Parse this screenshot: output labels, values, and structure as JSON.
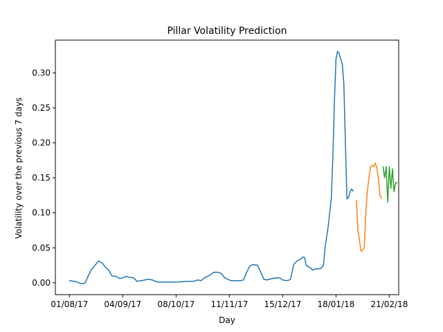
{
  "chart_data": {
    "type": "line",
    "title": "Pillar Volatility Prediction",
    "xlabel": "Day",
    "ylabel": "Volatility over the previous 7 days",
    "ylim": [
      -0.017,
      0.347
    ],
    "xlim": [
      "2017-07-23",
      "2018-02-27"
    ],
    "grid": false,
    "x_ticks": [
      "01/08/17",
      "04/09/17",
      "08/10/17",
      "11/11/17",
      "15/12/17",
      "18/01/18",
      "21/02/18"
    ],
    "y_ticks": [
      "0.00",
      "0.05",
      "0.10",
      "0.15",
      "0.20",
      "0.25",
      "0.30"
    ],
    "series": [
      {
        "color": "#1f77b4",
        "points": [
          [
            "2017-08-01",
            0.003
          ],
          [
            "2017-08-04",
            0.002
          ],
          [
            "2017-08-06",
            0.001
          ],
          [
            "2017-08-08",
            -0.001
          ],
          [
            "2017-08-10",
            -0.001
          ],
          [
            "2017-08-11",
            0.0
          ],
          [
            "2017-08-13",
            0.01
          ],
          [
            "2017-08-15",
            0.019
          ],
          [
            "2017-08-17",
            0.024
          ],
          [
            "2017-08-19",
            0.03
          ],
          [
            "2017-08-20",
            0.031
          ],
          [
            "2017-08-22",
            0.028
          ],
          [
            "2017-08-24",
            0.022
          ],
          [
            "2017-08-26",
            0.018
          ],
          [
            "2017-08-28",
            0.01
          ],
          [
            "2017-08-31",
            0.009
          ],
          [
            "2017-09-02",
            0.006
          ],
          [
            "2017-09-04",
            0.007
          ],
          [
            "2017-09-06",
            0.009
          ],
          [
            "2017-09-08",
            0.008
          ],
          [
            "2017-09-11",
            0.007
          ],
          [
            "2017-09-13",
            0.002
          ],
          [
            "2017-09-16",
            0.003
          ],
          [
            "2017-09-20",
            0.005
          ],
          [
            "2017-09-23",
            0.004
          ],
          [
            "2017-09-26",
            0.001
          ],
          [
            "2017-09-29",
            0.001
          ],
          [
            "2017-10-04",
            0.001
          ],
          [
            "2017-10-10",
            0.001
          ],
          [
            "2017-10-15",
            0.002
          ],
          [
            "2017-10-19",
            0.002
          ],
          [
            "2017-10-22",
            0.004
          ],
          [
            "2017-10-24",
            0.003
          ],
          [
            "2017-10-26",
            0.007
          ],
          [
            "2017-10-29",
            0.01
          ],
          [
            "2017-11-01",
            0.015
          ],
          [
            "2017-11-04",
            0.015
          ],
          [
            "2017-11-06",
            0.013
          ],
          [
            "2017-11-08",
            0.007
          ],
          [
            "2017-11-10",
            0.005
          ],
          [
            "2017-11-12",
            0.003
          ],
          [
            "2017-11-15",
            0.003
          ],
          [
            "2017-11-18",
            0.003
          ],
          [
            "2017-11-20",
            0.004
          ],
          [
            "2017-11-22",
            0.015
          ],
          [
            "2017-11-24",
            0.024
          ],
          [
            "2017-11-26",
            0.026
          ],
          [
            "2017-11-29",
            0.025
          ],
          [
            "2017-12-01",
            0.015
          ],
          [
            "2017-12-03",
            0.005
          ],
          [
            "2017-12-05",
            0.004
          ],
          [
            "2017-12-08",
            0.006
          ],
          [
            "2017-12-11",
            0.007
          ],
          [
            "2017-12-13",
            0.007
          ],
          [
            "2017-12-15",
            0.004
          ],
          [
            "2017-12-18",
            0.003
          ],
          [
            "2017-12-20",
            0.005
          ],
          [
            "2017-12-22",
            0.026
          ],
          [
            "2017-12-24",
            0.031
          ],
          [
            "2017-12-26",
            0.033
          ],
          [
            "2017-12-28",
            0.037
          ],
          [
            "2017-12-29",
            0.036
          ],
          [
            "2017-12-30",
            0.025
          ],
          [
            "2018-01-01",
            0.022
          ],
          [
            "2018-01-02",
            0.021
          ],
          [
            "2018-01-03",
            0.018
          ],
          [
            "2018-01-05",
            0.02
          ],
          [
            "2018-01-06",
            0.02
          ],
          [
            "2018-01-08",
            0.02
          ],
          [
            "2018-01-10",
            0.025
          ],
          [
            "2018-01-11",
            0.05
          ],
          [
            "2018-01-13",
            0.08
          ],
          [
            "2018-01-14",
            0.1
          ],
          [
            "2018-01-15",
            0.12
          ],
          [
            "2018-01-16",
            0.18
          ],
          [
            "2018-01-17",
            0.26
          ],
          [
            "2018-01-18",
            0.32
          ],
          [
            "2018-01-19",
            0.331
          ],
          [
            "2018-01-20",
            0.328
          ],
          [
            "2018-01-21",
            0.32
          ],
          [
            "2018-01-22",
            0.313
          ],
          [
            "2018-01-23",
            0.285
          ],
          [
            "2018-01-24",
            0.2
          ],
          [
            "2018-01-25",
            0.12
          ],
          [
            "2018-01-26",
            0.122
          ],
          [
            "2018-01-27",
            0.13
          ],
          [
            "2018-01-28",
            0.134
          ],
          [
            "2018-01-29",
            0.131
          ]
        ]
      },
      {
        "color": "#ff7f0e",
        "points": [
          [
            "2018-01-31",
            0.118
          ],
          [
            "2018-02-01",
            0.075
          ],
          [
            "2018-02-02",
            0.06
          ],
          [
            "2018-02-03",
            0.045
          ],
          [
            "2018-02-04",
            0.047
          ],
          [
            "2018-02-05",
            0.05
          ],
          [
            "2018-02-06",
            0.1
          ],
          [
            "2018-02-07",
            0.13
          ],
          [
            "2018-02-08",
            0.15
          ],
          [
            "2018-02-09",
            0.165
          ],
          [
            "2018-02-10",
            0.168
          ],
          [
            "2018-02-11",
            0.166
          ],
          [
            "2018-02-12",
            0.171
          ],
          [
            "2018-02-13",
            0.165
          ],
          [
            "2018-02-14",
            0.15
          ],
          [
            "2018-02-15",
            0.125
          ],
          [
            "2018-02-16",
            0.121
          ]
        ]
      },
      {
        "color": "#2ca02c",
        "points": [
          [
            "2018-02-17",
            0.166
          ],
          [
            "2018-02-18",
            0.15
          ],
          [
            "2018-02-19",
            0.166
          ],
          [
            "2018-02-20",
            0.115
          ],
          [
            "2018-02-21",
            0.166
          ],
          [
            "2018-02-22",
            0.135
          ],
          [
            "2018-02-23",
            0.163
          ],
          [
            "2018-02-24",
            0.13
          ],
          [
            "2018-02-25",
            0.143
          ],
          [
            "2018-02-26",
            0.143
          ]
        ]
      }
    ]
  }
}
